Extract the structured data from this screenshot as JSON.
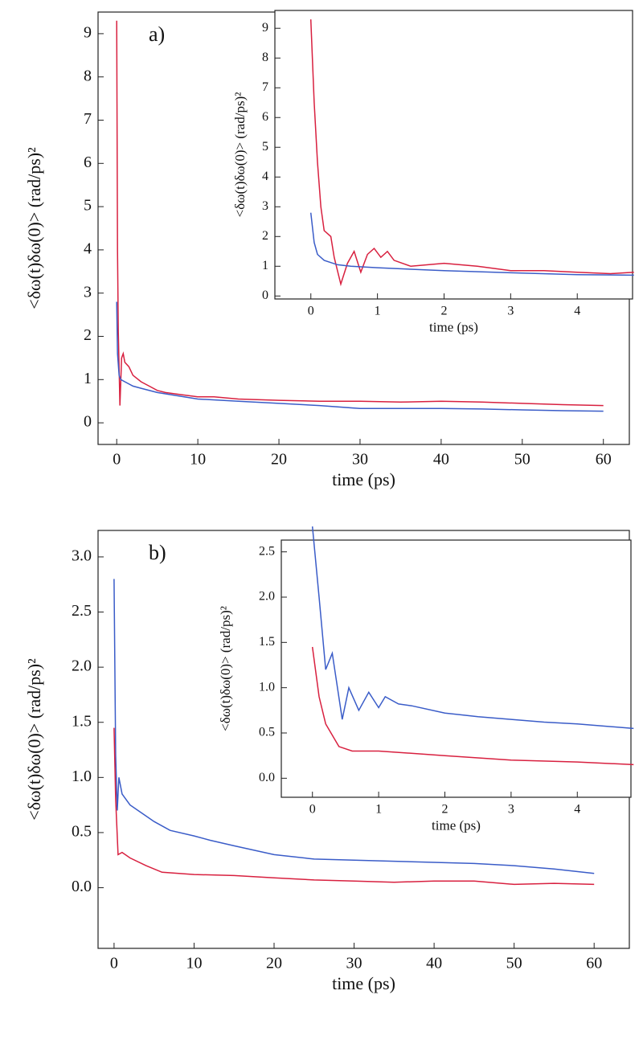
{
  "chart_data": [
    {
      "type": "line",
      "title": "a)",
      "xlabel": "time (ps)",
      "ylabel": "<δω(t)δω(0)> (rad/ps)²",
      "xlim": [
        -2.3,
        63.2
      ],
      "ylim": [
        -0.5,
        9.5
      ],
      "xticks": [
        0,
        10,
        20,
        30,
        40,
        50,
        60
      ],
      "yticks": [
        0,
        1,
        2,
        3,
        4,
        5,
        6,
        7,
        8,
        9
      ],
      "series": [
        {
          "color": "#d8203f",
          "x": [
            0,
            0.1,
            0.2,
            0.4,
            0.6,
            0.8,
            1,
            1.5,
            2,
            3,
            4,
            5,
            6,
            8,
            10,
            12,
            15,
            20,
            25,
            30,
            35,
            40,
            45,
            50,
            55,
            60
          ],
          "values": [
            9.3,
            4,
            2.1,
            0.4,
            1.5,
            1.6,
            1.4,
            1.3,
            1.1,
            0.95,
            0.85,
            0.75,
            0.7,
            0.65,
            0.6,
            0.6,
            0.55,
            0.52,
            0.5,
            0.5,
            0.48,
            0.5,
            0.48,
            0.45,
            0.42,
            0.4
          ]
        },
        {
          "color": "#3a5cc8",
          "x": [
            0,
            0.1,
            0.3,
            0.5,
            1,
            2,
            3,
            5,
            10,
            15,
            20,
            25,
            30,
            35,
            40,
            45,
            50,
            55,
            60
          ],
          "values": [
            2.8,
            1.6,
            1.1,
            1.0,
            0.95,
            0.85,
            0.8,
            0.7,
            0.55,
            0.5,
            0.45,
            0.4,
            0.33,
            0.33,
            0.33,
            0.32,
            0.3,
            0.28,
            0.27
          ]
        }
      ]
    },
    {
      "type": "line",
      "xlabel": "time (ps)",
      "ylabel": "<δω(t)δω(0)> (rad/ps)²",
      "xlim": [
        -0.54,
        4.83
      ],
      "ylim": [
        -0.1,
        9.6
      ],
      "xticks": [
        0,
        1,
        2,
        3,
        4
      ],
      "yticks": [
        0,
        1,
        2,
        3,
        4,
        5,
        6,
        7,
        8,
        9
      ],
      "series": [
        {
          "color": "#d8203f",
          "x": [
            0,
            0.05,
            0.1,
            0.15,
            0.2,
            0.3,
            0.35,
            0.45,
            0.55,
            0.65,
            0.75,
            0.85,
            0.95,
            1.05,
            1.15,
            1.25,
            1.5,
            2,
            2.5,
            3,
            3.5,
            4,
            4.5,
            4.85
          ],
          "values": [
            9.3,
            6.5,
            4.5,
            3,
            2.2,
            2.0,
            1.3,
            0.4,
            1.1,
            1.5,
            0.8,
            1.4,
            1.6,
            1.3,
            1.5,
            1.2,
            1.0,
            1.1,
            1.0,
            0.85,
            0.85,
            0.8,
            0.75,
            0.8
          ]
        },
        {
          "color": "#3a5cc8",
          "x": [
            0,
            0.05,
            0.1,
            0.2,
            0.4,
            0.6,
            1,
            2,
            3,
            4,
            4.85
          ],
          "values": [
            2.8,
            1.8,
            1.4,
            1.2,
            1.05,
            1.0,
            0.95,
            0.85,
            0.78,
            0.72,
            0.7
          ]
        }
      ]
    },
    {
      "type": "line",
      "title": "b)",
      "xlabel": "time (ps)",
      "ylabel": "<δω(t)δω(0)> (rad/ps)²",
      "xlim": [
        -2,
        64.4
      ],
      "ylim": [
        -0.55,
        3.24
      ],
      "xticks": [
        0,
        10,
        20,
        30,
        40,
        50,
        60
      ],
      "yticks": [
        {
          "value": 0,
          "label": "0.0"
        },
        {
          "value": 0.5,
          "label": "0.5"
        },
        {
          "value": 1,
          "label": "1.0"
        },
        {
          "value": 1.5,
          "label": "1.5"
        },
        {
          "value": 2,
          "label": "2.0"
        },
        {
          "value": 2.5,
          "label": "2.5"
        },
        {
          "value": 3,
          "label": "3.0"
        }
      ],
      "series": [
        {
          "color": "#3a5cc8",
          "x": [
            0,
            0.2,
            0.4,
            0.6,
            1,
            2,
            3,
            5,
            7,
            10,
            12,
            15,
            20,
            25,
            30,
            35,
            40,
            45,
            50,
            55,
            60
          ],
          "values": [
            2.8,
            1.2,
            0.7,
            1.0,
            0.85,
            0.75,
            0.7,
            0.6,
            0.52,
            0.47,
            0.43,
            0.38,
            0.3,
            0.26,
            0.25,
            0.24,
            0.23,
            0.22,
            0.2,
            0.17,
            0.13
          ]
        },
        {
          "color": "#d8203f",
          "x": [
            0,
            0.2,
            0.5,
            1,
            2,
            4,
            6,
            10,
            15,
            20,
            25,
            30,
            35,
            40,
            45,
            50,
            55,
            60
          ],
          "values": [
            1.45,
            0.8,
            0.3,
            0.32,
            0.27,
            0.2,
            0.14,
            0.12,
            0.11,
            0.09,
            0.07,
            0.06,
            0.05,
            0.06,
            0.06,
            0.03,
            0.04,
            0.03
          ]
        }
      ]
    },
    {
      "type": "line",
      "xlabel": "time (ps)",
      "ylabel": "<δω(t)δω(0)> (rad/ps)²",
      "xlim": [
        -0.47,
        4.81
      ],
      "ylim": [
        -0.21,
        2.63
      ],
      "xticks": [
        0,
        1,
        2,
        3,
        4
      ],
      "yticks": [
        {
          "value": 0,
          "label": "0.0"
        },
        {
          "value": 0.5,
          "label": "0.5"
        },
        {
          "value": 1,
          "label": "1.0"
        },
        {
          "value": 1.5,
          "label": "1.5"
        },
        {
          "value": 2,
          "label": "2.0"
        },
        {
          "value": 2.5,
          "label": "2.5"
        }
      ],
      "series": [
        {
          "color": "#3a5cc8",
          "x": [
            0,
            0.1,
            0.2,
            0.3,
            0.45,
            0.55,
            0.7,
            0.85,
            1,
            1.1,
            1.3,
            1.5,
            2,
            2.5,
            3,
            3.5,
            4,
            4.85
          ],
          "values": [
            2.78,
            2.0,
            1.2,
            1.38,
            0.65,
            1.0,
            0.75,
            0.95,
            0.78,
            0.9,
            0.82,
            0.8,
            0.72,
            0.68,
            0.65,
            0.62,
            0.6,
            0.55
          ]
        },
        {
          "color": "#d8203f",
          "x": [
            0,
            0.1,
            0.2,
            0.4,
            0.6,
            1,
            2,
            3,
            4,
            4.85
          ],
          "values": [
            1.45,
            0.9,
            0.6,
            0.35,
            0.3,
            0.3,
            0.25,
            0.2,
            0.18,
            0.15
          ]
        }
      ]
    }
  ]
}
